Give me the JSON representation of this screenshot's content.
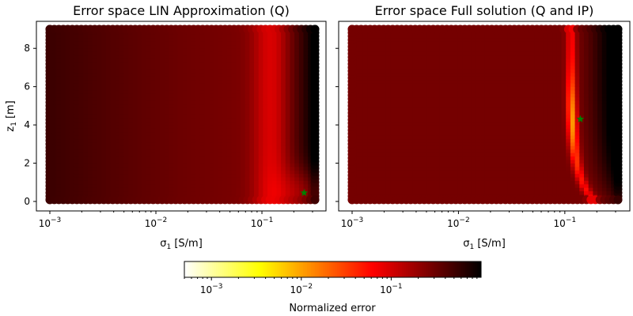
{
  "chart_data": [
    {
      "type": "heatmap",
      "title": "Error space LIN Approximation (Q)",
      "xlabel_symbol": "σ",
      "xlabel_sub": "1",
      "xlabel_unit": " [S/m]",
      "ylabel_symbol": "z",
      "ylabel_sub": "1",
      "ylabel_unit": " [m]",
      "x_scale": "log",
      "x_range": [
        0.001,
        0.316
      ],
      "y_range": [
        0.09,
        9.0
      ],
      "x_ticks": [
        {
          "value": 0.001,
          "base": "10",
          "exp": "−3"
        },
        {
          "value": 0.01,
          "base": "10",
          "exp": "−2"
        },
        {
          "value": 0.1,
          "base": "10",
          "exp": "−1"
        }
      ],
      "y_ticks": [
        {
          "value": 0,
          "label": "0"
        },
        {
          "value": 2,
          "label": "2"
        },
        {
          "value": 4,
          "label": "4"
        },
        {
          "value": 6,
          "label": "6"
        },
        {
          "value": 8,
          "label": "8"
        }
      ],
      "marker": {
        "x": 0.25,
        "y": 0.45,
        "symbol": "star",
        "color": "#008000"
      },
      "error_field": {
        "ridge_sigma": 0.12,
        "min_error": 0.12,
        "background_error": 0.42,
        "max_error": 1.0
      }
    },
    {
      "type": "heatmap",
      "title": "Error space Full solution (Q and IP)",
      "xlabel_symbol": "σ",
      "xlabel_sub": "1",
      "xlabel_unit": " [S/m]",
      "x_scale": "log",
      "x_range": [
        0.001,
        0.316
      ],
      "y_range": [
        0.09,
        9.0
      ],
      "x_ticks": [
        {
          "value": 0.001,
          "base": "10",
          "exp": "−3"
        },
        {
          "value": 0.01,
          "base": "10",
          "exp": "−2"
        },
        {
          "value": 0.1,
          "base": "10",
          "exp": "−1"
        }
      ],
      "y_ticks": [
        {
          "value": 0
        },
        {
          "value": 2
        },
        {
          "value": 4
        },
        {
          "value": 6
        },
        {
          "value": 8
        }
      ],
      "marker": {
        "x": 0.14,
        "y": 4.3,
        "symbol": "star",
        "color": "#008000"
      },
      "error_field": {
        "ridge_sigma": 0.115,
        "min_error": 0.012,
        "background_error": 0.28,
        "max_error": 1.0
      }
    }
  ],
  "colorbar": {
    "label": "Normalized error",
    "colormap": "hot_r",
    "scale": "log",
    "range": [
      0.0005,
      1.0
    ],
    "ticks": [
      {
        "value": 0.001,
        "base": "10",
        "exp": "−3"
      },
      {
        "value": 0.01,
        "base": "10",
        "exp": "−2"
      },
      {
        "value": 0.1,
        "base": "10",
        "exp": "−1"
      }
    ]
  }
}
